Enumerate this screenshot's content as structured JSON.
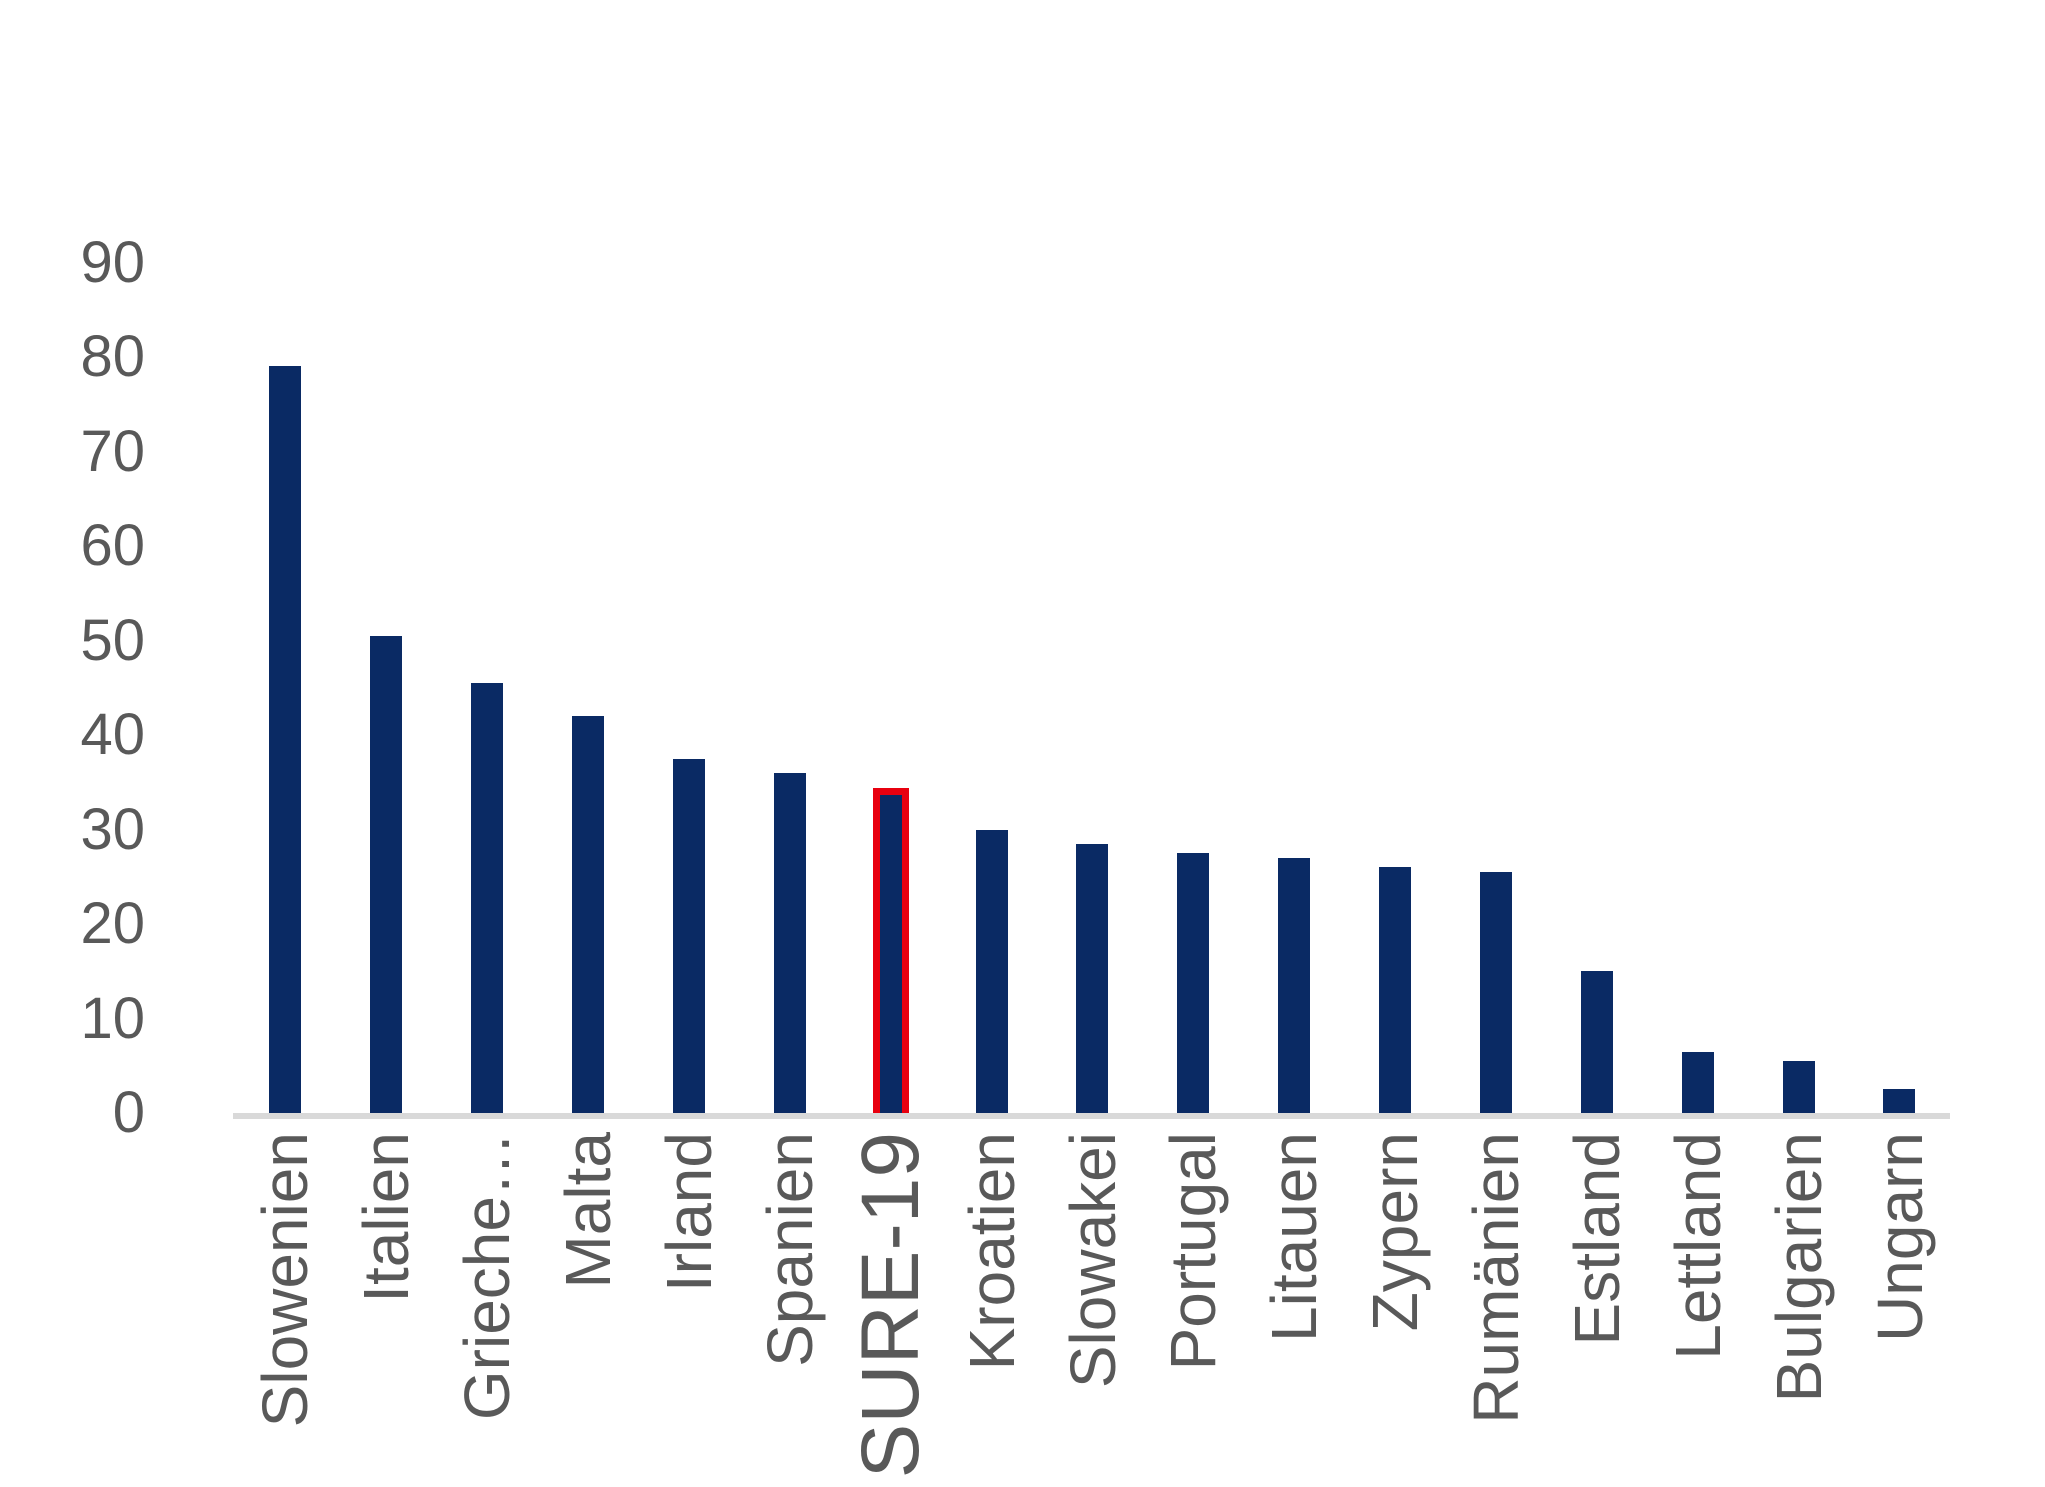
{
  "chart_data": {
    "type": "bar",
    "title": "",
    "xlabel": "",
    "ylabel": "",
    "categories": [
      "Slowenien",
      "Italien",
      "Grieche…",
      "Malta",
      "Irland",
      "Spanien",
      "SURE-19",
      "Kroatien",
      "Slowakei",
      "Portugal",
      "Litauen",
      "Zypern",
      "Rumänien",
      "Estland",
      "Lettland",
      "Bulgarien",
      "Ungarn"
    ],
    "values": [
      79,
      50.5,
      45.5,
      42,
      37.5,
      36,
      34,
      30,
      28.5,
      27.5,
      27,
      26,
      25.5,
      15,
      6.5,
      5.5,
      2.5
    ],
    "yticks": [
      0,
      10,
      20,
      30,
      40,
      50,
      60,
      70,
      80,
      90
    ],
    "ytick_labels": [
      "0",
      "10",
      "20",
      "30",
      "40",
      "50",
      "60",
      "70",
      "80",
      "90"
    ],
    "ylim": [
      0,
      90
    ],
    "grid": false,
    "legend": false,
    "highlight": {
      "category": "SURE-19",
      "outline_color": "#e8000f"
    },
    "colors": {
      "bar": "#0a2a64",
      "axis_line": "#d9d9d9",
      "tick_label": "#595959",
      "category_label": "#595959",
      "background": "#ffffff"
    }
  }
}
